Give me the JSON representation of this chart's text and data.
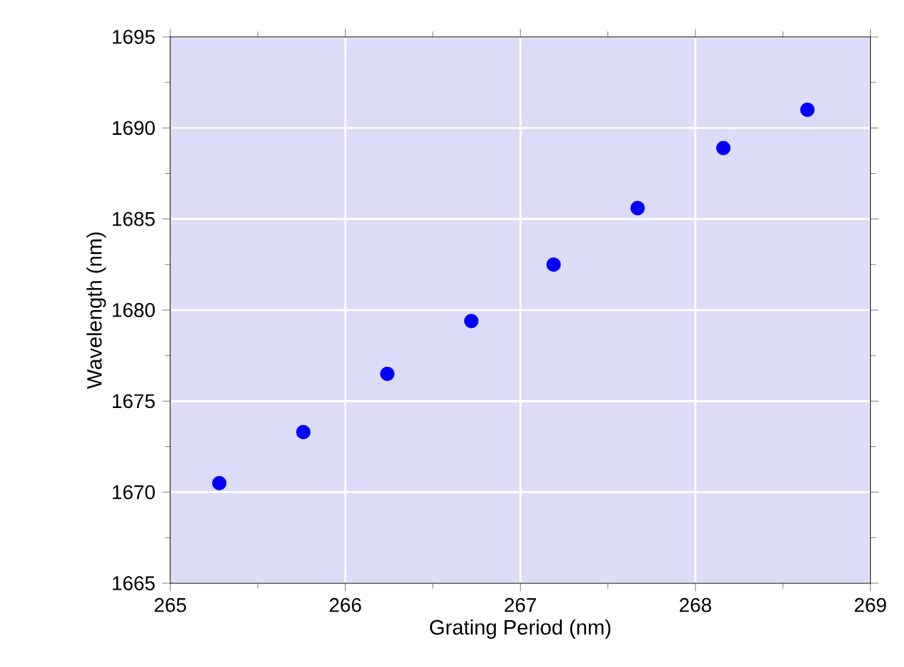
{
  "chart_data": {
    "type": "scatter",
    "xlabel": "Grating Period (nm)",
    "ylabel": "Wavelength (nm)",
    "x": [
      265.28,
      265.76,
      266.24,
      266.72,
      267.19,
      267.67,
      268.16,
      268.64
    ],
    "series": [
      {
        "color": "#0000ff",
        "values": [
          1670.5,
          1673.3,
          1676.5,
          1679.4,
          1682.5,
          1685.6,
          1688.9,
          1691.0
        ]
      }
    ],
    "xlim": [
      265,
      269
    ],
    "ylim": [
      1665,
      1695
    ],
    "xticks": [
      265,
      266,
      267,
      268,
      269
    ],
    "yticks": [
      1665,
      1670,
      1675,
      1680,
      1685,
      1690,
      1695
    ],
    "grid": true,
    "marker": "circle",
    "legend": false
  }
}
